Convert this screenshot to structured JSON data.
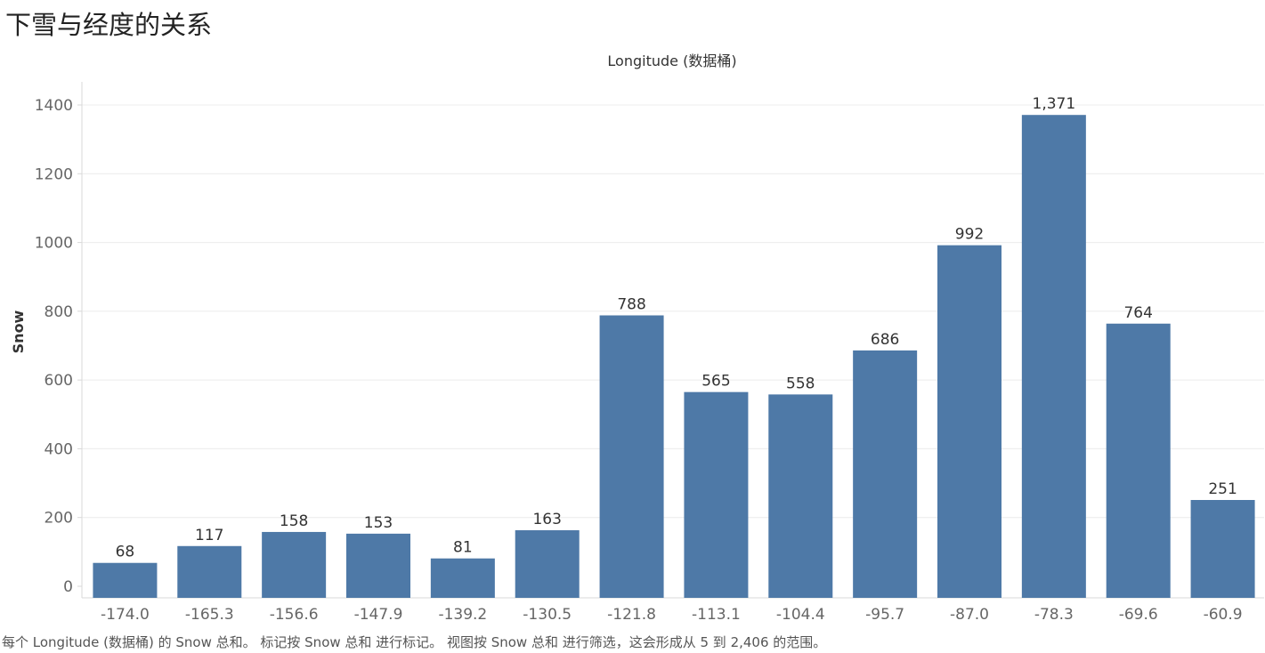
{
  "sheet": {
    "title": "下雪与经度的关系",
    "caption": "每个 Longitude (数据桶) 的 Snow 总和。 标记按 Snow 总和 进行标记。 视图按 Snow 总和 进行筛选，这会形成从 5 到 2,406 的范围。"
  },
  "colors": {
    "bar": "#4e79a7",
    "grid": "#ececec",
    "axis_text": "#666666",
    "label_text": "#333333"
  },
  "chart_data": {
    "type": "bar",
    "title": "Longitude (数据桶)",
    "xlabel": "Longitude (数据桶)",
    "ylabel": "Snow",
    "categories": [
      "-174.0",
      "-165.3",
      "-156.6",
      "-147.9",
      "-139.2",
      "-130.5",
      "-121.8",
      "-113.1",
      "-104.4",
      "-95.7",
      "-87.0",
      "-78.3",
      "-69.6",
      "-60.9"
    ],
    "values": [
      68,
      117,
      158,
      153,
      81,
      163,
      788,
      565,
      558,
      686,
      992,
      1371,
      764,
      251
    ],
    "data_labels": [
      "68",
      "117",
      "158",
      "153",
      "81",
      "163",
      "788",
      "565",
      "558",
      "686",
      "992",
      "1,371",
      "764",
      "251"
    ],
    "ylim": [
      0,
      1400
    ],
    "yticks": [
      0,
      200,
      400,
      600,
      800,
      1000,
      1200,
      1400
    ],
    "grid": true,
    "legend": "none"
  }
}
